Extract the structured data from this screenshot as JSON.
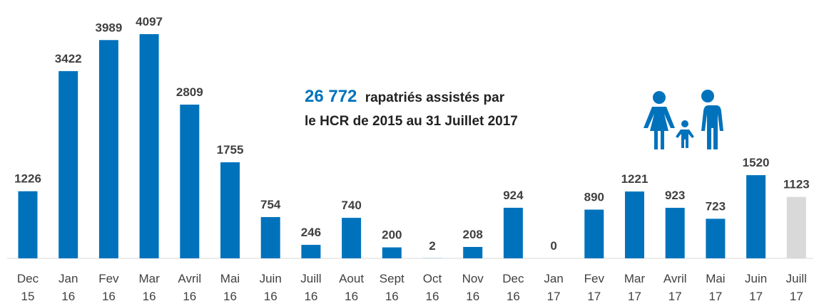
{
  "chart_data": {
    "type": "bar",
    "categories": [
      "Dec 15",
      "Jan 16",
      "Fev 16",
      "Mar 16",
      "Avril 16",
      "Mai 16",
      "Juin 16",
      "Juill 16",
      "Aout 16",
      "Sept 16",
      "Oct 16",
      "Nov 16",
      "Dec 16",
      "Jan 17",
      "Fev 17",
      "Mar 17",
      "Avril 17",
      "Mai 17",
      "Juin 17",
      "Juill 17"
    ],
    "values": [
      1226,
      3422,
      3989,
      4097,
      2809,
      1755,
      754,
      246,
      740,
      200,
      2,
      208,
      924,
      0,
      890,
      1221,
      923,
      723,
      1520,
      1123
    ],
    "colors": [
      "#0072bc",
      "#0072bc",
      "#0072bc",
      "#0072bc",
      "#0072bc",
      "#0072bc",
      "#0072bc",
      "#0072bc",
      "#0072bc",
      "#0072bc",
      "#0072bc",
      "#0072bc",
      "#0072bc",
      "#0072bc",
      "#0072bc",
      "#0072bc",
      "#0072bc",
      "#0072bc",
      "#0072bc",
      "#d9d9d9"
    ],
    "annotation": {
      "number": "26 772",
      "line1": "rapatriés assistés par",
      "line2": "le HCR de 2015 au 31 Juillet 2017"
    }
  }
}
